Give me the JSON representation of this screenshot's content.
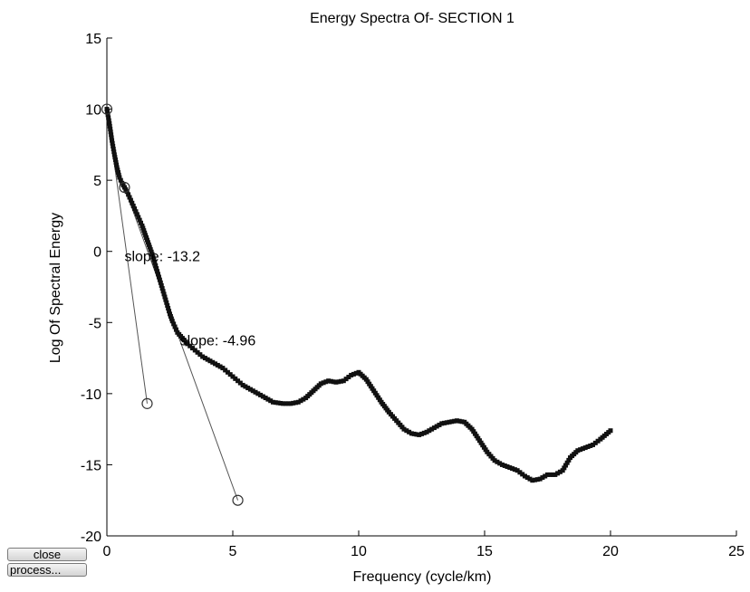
{
  "window": {
    "close_label": "close",
    "process_label": "process..."
  },
  "chart_data": {
    "type": "scatter",
    "title": "Energy Spectra Of- SECTION 1",
    "xlabel": "Frequency (cycle/km)",
    "ylabel": "Log Of Spectral Energy",
    "xlim": [
      0,
      25
    ],
    "ylim": [
      -20,
      15
    ],
    "xticks": [
      0,
      5,
      10,
      15,
      20,
      25
    ],
    "yticks": [
      -20,
      -15,
      -10,
      -5,
      0,
      5,
      10,
      15
    ],
    "grid": false,
    "colors": {
      "data": "#111111",
      "fit": "#555555",
      "axis": "#000000"
    },
    "series": [
      {
        "values": [
          [
            0.0,
            10.0
          ],
          [
            0.1,
            9.0
          ],
          [
            0.2,
            7.8
          ],
          [
            0.3,
            6.8
          ],
          [
            0.4,
            5.9
          ],
          [
            0.5,
            5.2
          ],
          [
            0.6,
            4.8
          ],
          [
            0.7,
            4.5
          ],
          [
            0.8,
            4.2
          ],
          [
            0.9,
            3.8
          ],
          [
            1.0,
            3.4
          ],
          [
            1.1,
            3.0
          ],
          [
            1.2,
            2.6
          ],
          [
            1.3,
            2.2
          ],
          [
            1.4,
            1.8
          ],
          [
            1.5,
            1.3
          ],
          [
            1.6,
            0.8
          ],
          [
            1.7,
            0.3
          ],
          [
            1.8,
            -0.2
          ],
          [
            1.9,
            -0.8
          ],
          [
            2.0,
            -1.4
          ],
          [
            2.1,
            -2.0
          ],
          [
            2.2,
            -2.6
          ],
          [
            2.3,
            -3.2
          ],
          [
            2.4,
            -3.8
          ],
          [
            2.5,
            -4.4
          ],
          [
            2.6,
            -4.9
          ],
          [
            2.7,
            -5.3
          ],
          [
            2.8,
            -5.7
          ],
          [
            3.0,
            -6.1
          ],
          [
            3.2,
            -6.5
          ],
          [
            3.4,
            -6.8
          ],
          [
            3.6,
            -7.1
          ],
          [
            3.8,
            -7.4
          ],
          [
            4.0,
            -7.6
          ],
          [
            4.2,
            -7.8
          ],
          [
            4.4,
            -8.0
          ],
          [
            4.6,
            -8.2
          ],
          [
            4.8,
            -8.5
          ],
          [
            5.0,
            -8.8
          ],
          [
            5.2,
            -9.1
          ],
          [
            5.4,
            -9.4
          ],
          [
            5.6,
            -9.6
          ],
          [
            5.8,
            -9.8
          ],
          [
            6.0,
            -10.0
          ],
          [
            6.3,
            -10.3
          ],
          [
            6.6,
            -10.6
          ],
          [
            7.0,
            -10.7
          ],
          [
            7.3,
            -10.7
          ],
          [
            7.6,
            -10.6
          ],
          [
            7.9,
            -10.3
          ],
          [
            8.2,
            -9.8
          ],
          [
            8.5,
            -9.3
          ],
          [
            8.8,
            -9.1
          ],
          [
            9.1,
            -9.2
          ],
          [
            9.4,
            -9.1
          ],
          [
            9.7,
            -8.7
          ],
          [
            10.0,
            -8.5
          ],
          [
            10.3,
            -9.0
          ],
          [
            10.6,
            -9.8
          ],
          [
            10.9,
            -10.6
          ],
          [
            11.2,
            -11.3
          ],
          [
            11.5,
            -11.9
          ],
          [
            11.8,
            -12.5
          ],
          [
            12.1,
            -12.8
          ],
          [
            12.4,
            -12.9
          ],
          [
            12.7,
            -12.7
          ],
          [
            13.0,
            -12.4
          ],
          [
            13.3,
            -12.1
          ],
          [
            13.6,
            -12.0
          ],
          [
            13.9,
            -11.9
          ],
          [
            14.2,
            -12.0
          ],
          [
            14.5,
            -12.5
          ],
          [
            14.8,
            -13.3
          ],
          [
            15.1,
            -14.1
          ],
          [
            15.4,
            -14.7
          ],
          [
            15.7,
            -15.0
          ],
          [
            16.0,
            -15.2
          ],
          [
            16.3,
            -15.4
          ],
          [
            16.6,
            -15.8
          ],
          [
            16.9,
            -16.1
          ],
          [
            17.2,
            -16.0
          ],
          [
            17.5,
            -15.7
          ],
          [
            17.8,
            -15.7
          ],
          [
            18.1,
            -15.4
          ],
          [
            18.4,
            -14.5
          ],
          [
            18.7,
            -14.0
          ],
          [
            19.0,
            -13.8
          ],
          [
            19.3,
            -13.6
          ],
          [
            19.6,
            -13.2
          ],
          [
            20.0,
            -12.6
          ]
        ]
      }
    ],
    "fit_lines": [
      {
        "label": "slope: -13.2",
        "start": [
          0.0,
          10.0
        ],
        "end": [
          1.6,
          -10.7
        ],
        "label_at": [
          0.7,
          -0.7
        ]
      },
      {
        "label": "slope: -4.96",
        "start": [
          0.7,
          4.5
        ],
        "end": [
          5.2,
          -17.5
        ],
        "label_at": [
          2.9,
          -6.6
        ]
      }
    ]
  }
}
